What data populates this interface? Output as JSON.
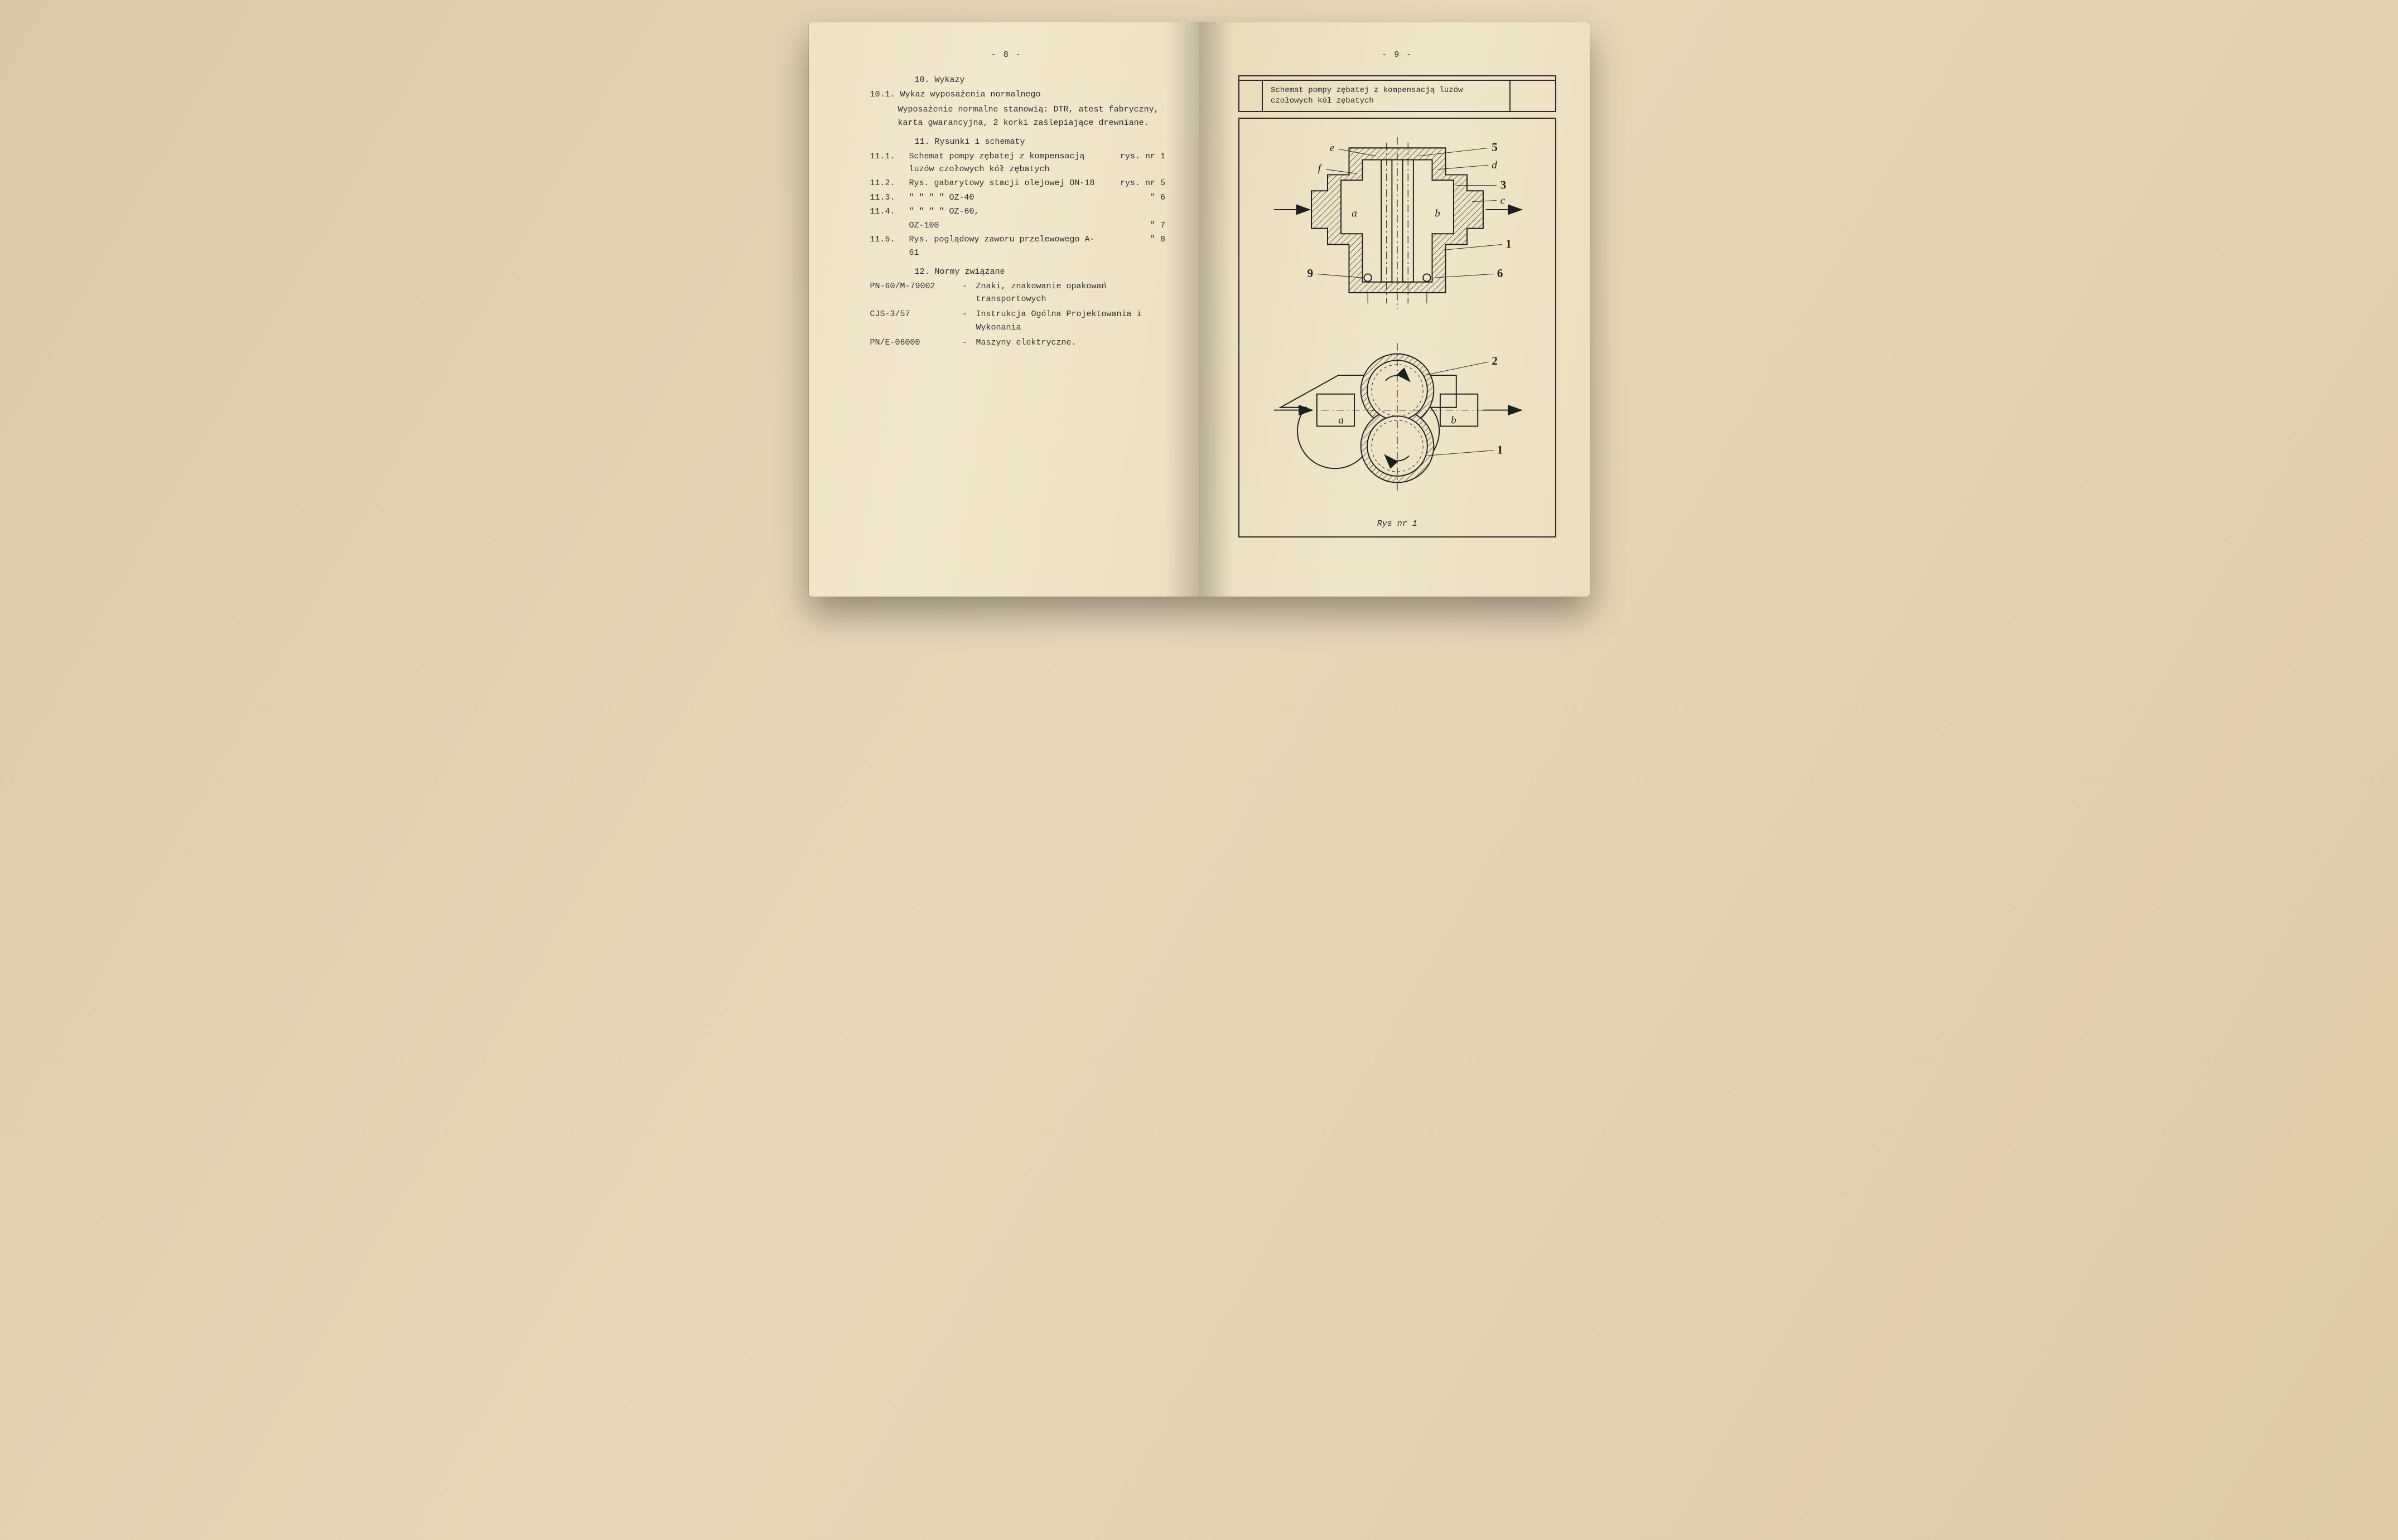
{
  "left": {
    "page_number": "- 8 -",
    "s10_title": "10. Wykazy",
    "s10_1_head": "10.1. Wykaz wyposażenia normalnego",
    "s10_1_body": "Wyposażenie normalne stanowią: DTR, atest fabryczny, karta gwarancyjna, 2 korki zaślepiające drewniane.",
    "s11_title": "11. Rysunki i schematy",
    "rows": [
      {
        "c1": "11.1.",
        "c2": "Schemat pompy zębatej z kompensacją luzów czołowych kół zębatych",
        "c3": "rys. nr 1"
      },
      {
        "c1": "11.2.",
        "c2": "Rys. gabarytowy stacji olejowej ON-18",
        "c3": "rys. nr 5"
      },
      {
        "c1": "11.3.",
        "c2": "\"        \"        \"        \"     OZ-40",
        "c3": "\"   6"
      },
      {
        "c1": "11.4.",
        "c2": "\"        \"        \"        \"     OZ-60,",
        "c3": ""
      },
      {
        "c1": "",
        "c2": "                                     OZ-100",
        "c3": "\"   7"
      },
      {
        "c1": "11.5.",
        "c2": "Rys. poglądowy zaworu przelewowego A-61",
        "c3": "\"   8"
      }
    ],
    "s12_title": "12. Normy związane",
    "norms": [
      {
        "k": "PN-60/M-79002",
        "v": "Znaki, znakowanie opakowań transportowych"
      },
      {
        "k": "CJS-3/57",
        "v": "Instrukcja Ogólna Projektowania i Wykonania"
      },
      {
        "k": "PN/E-06000",
        "v": "Maszyny elektryczne."
      }
    ]
  },
  "right": {
    "page_number": "- 9 -",
    "title": "Schemat pompy zębatej z kompensacją luzów czołowych kół zębatych",
    "fig_caption": "Rys nr 1",
    "callouts_top": {
      "e": "e",
      "f": "f",
      "a": "a",
      "b": "b",
      "c": "c",
      "d": "d",
      "n1": "1",
      "n3": "3",
      "n5": "5",
      "n6": "6",
      "n9": "9"
    },
    "callouts_bot": {
      "a": "a",
      "b": "b",
      "n1": "1",
      "n2": "2"
    },
    "ink": "#1e1e1e",
    "paper": "#efe3c6"
  }
}
